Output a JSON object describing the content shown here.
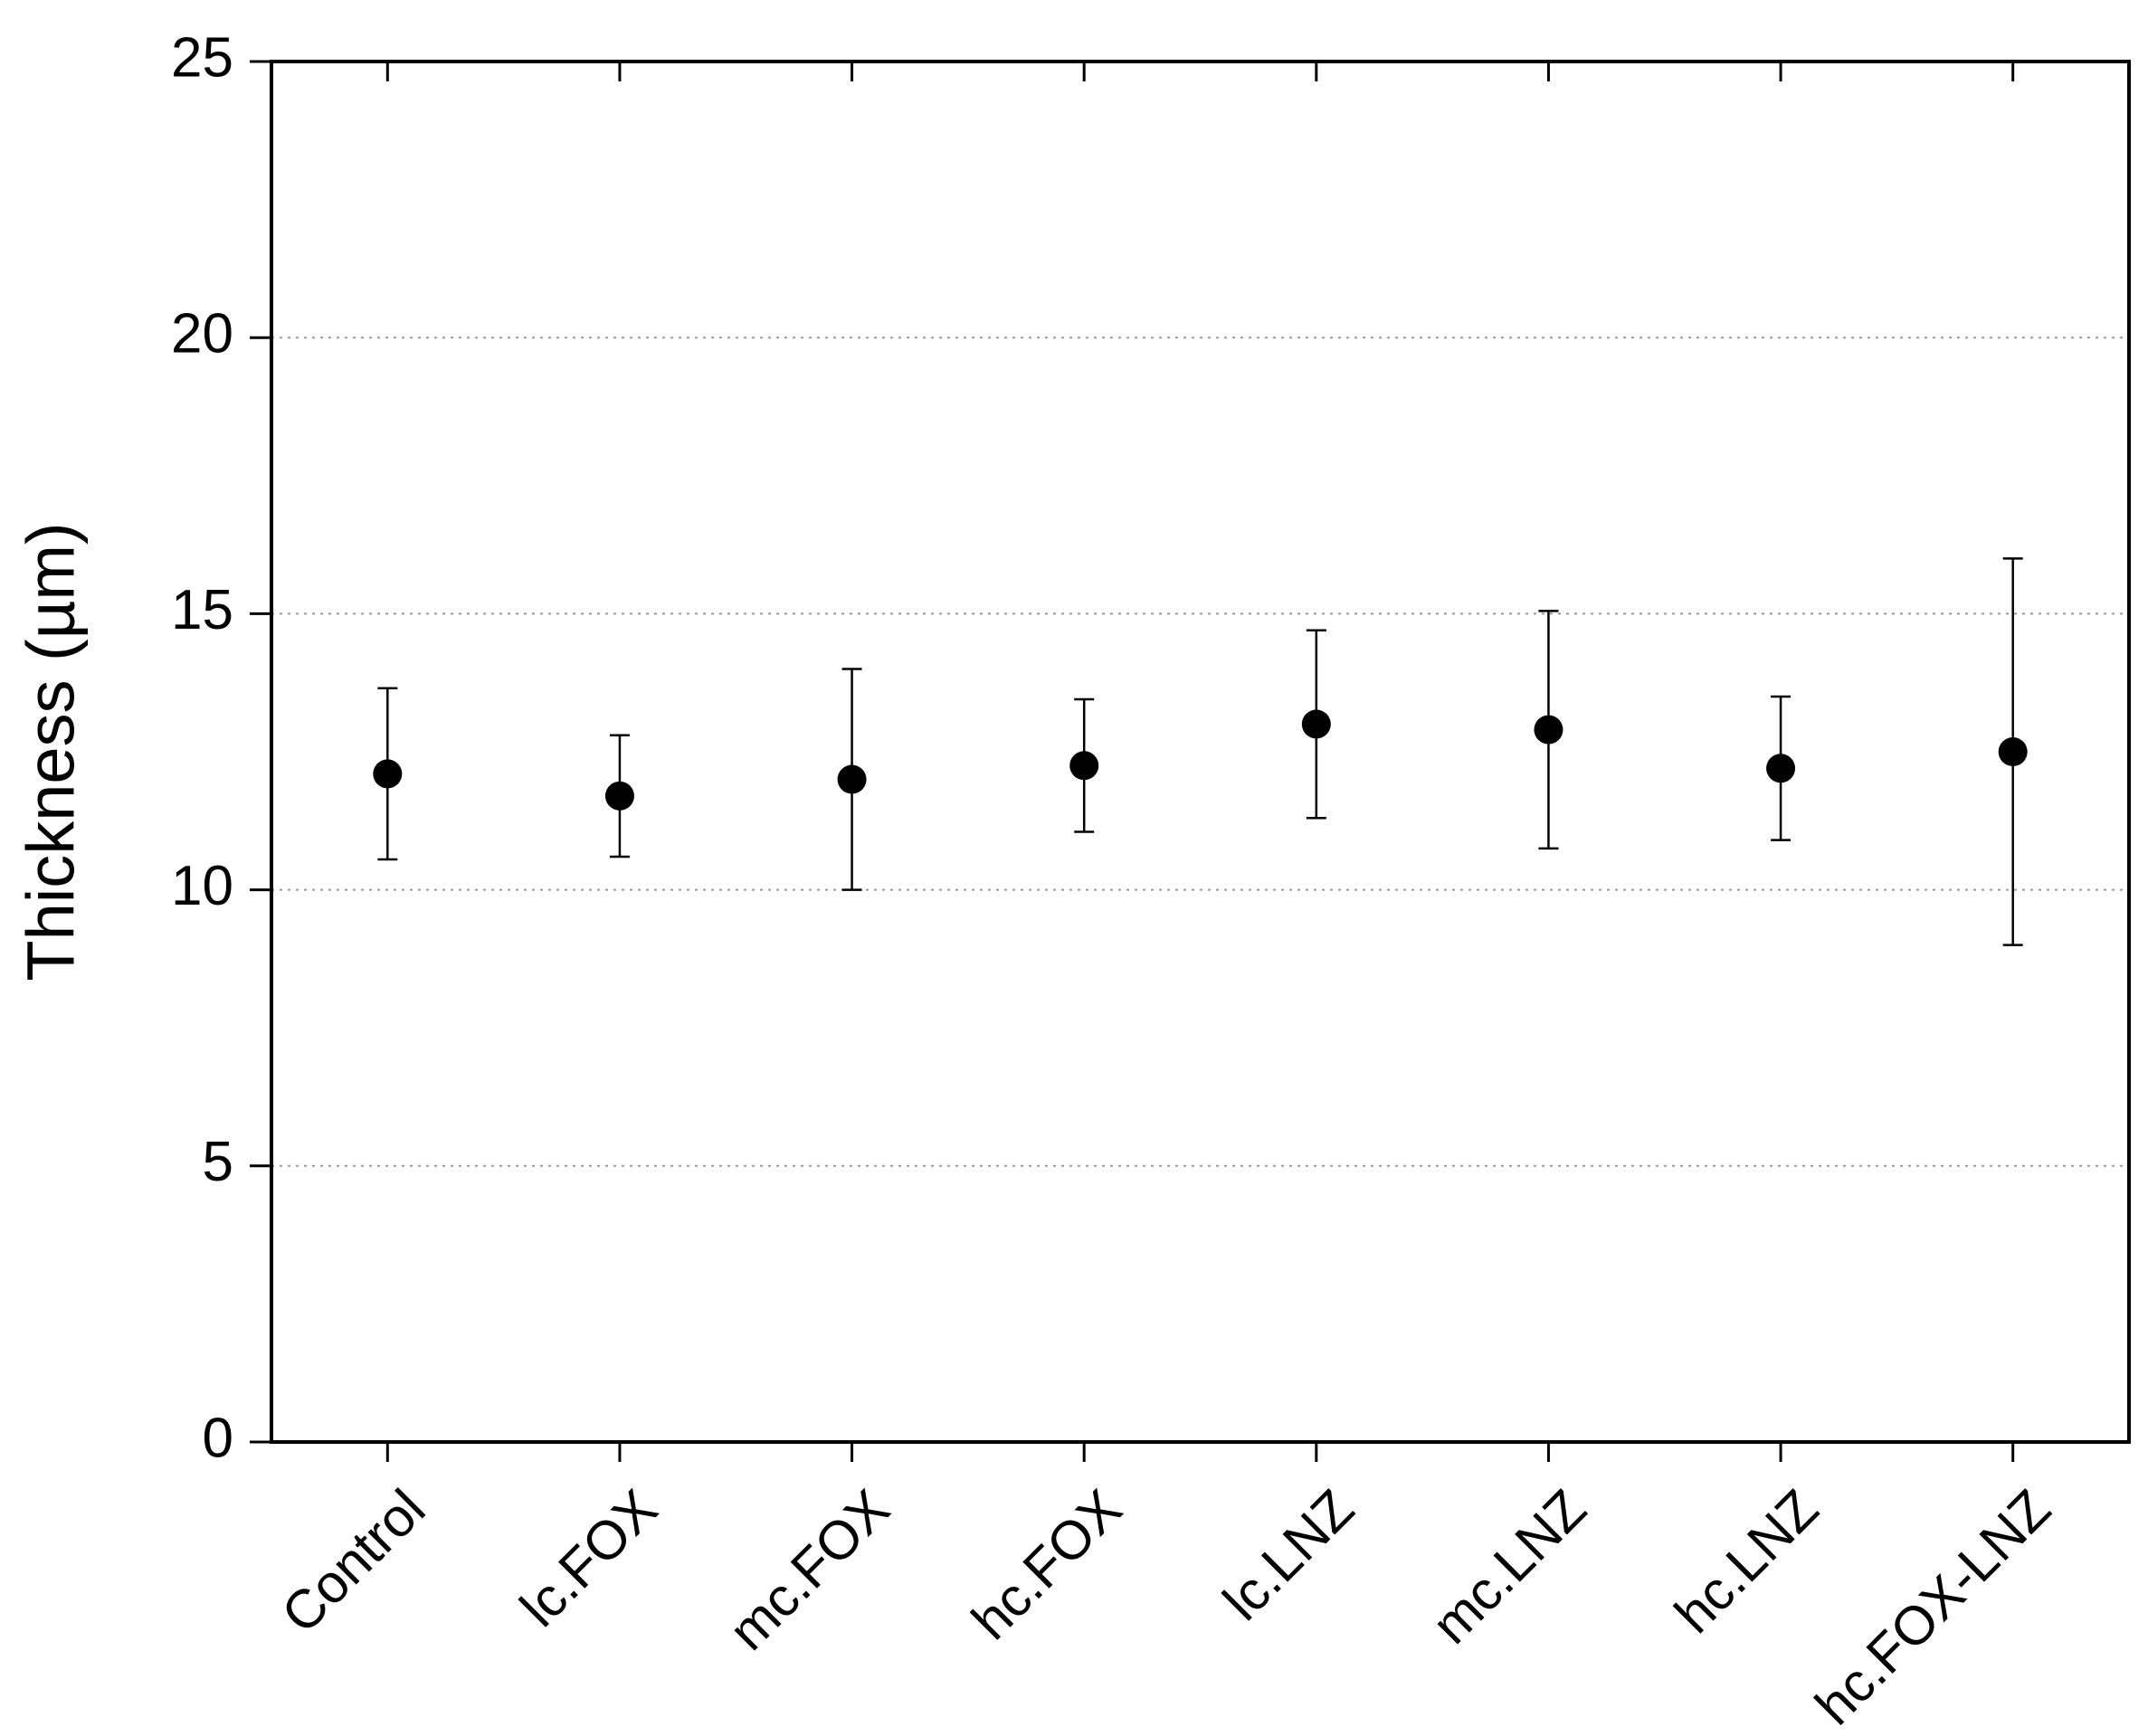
{
  "chart_data": {
    "type": "errorbar",
    "ylabel": "Thickness (µm)",
    "categories": [
      "Control",
      "lc.FOX",
      "mc.FOX",
      "hc.FOX",
      "lc.LNZ",
      "mc.LNZ",
      "hc.LNZ",
      "hc.FOX-LNZ"
    ],
    "values": [
      12.1,
      11.7,
      12.0,
      12.25,
      13.0,
      12.9,
      12.2,
      12.5
    ],
    "errors": [
      1.55,
      1.1,
      2.0,
      1.2,
      1.7,
      2.15,
      1.3,
      3.5
    ],
    "color": "#000000",
    "ylim": [
      0,
      25
    ],
    "yticks": [
      0,
      5,
      10,
      15,
      20,
      25
    ],
    "grid": true
  }
}
